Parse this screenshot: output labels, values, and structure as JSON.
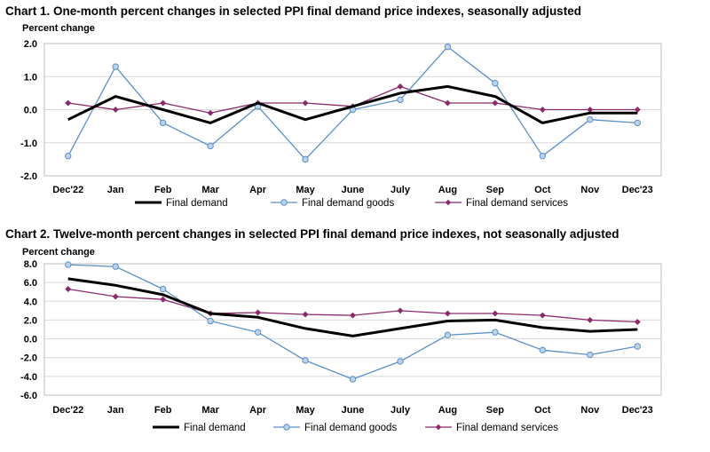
{
  "chart_data": [
    {
      "type": "line",
      "title": "Chart 1. One-month percent changes in selected PPI final demand price indexes, seasonally adjusted",
      "ylabel": "Percent change",
      "xlabel": "",
      "ylim": [
        -2.0,
        2.0
      ],
      "yticks": [
        "2.0",
        "1.0",
        "0.0",
        "-1.0",
        "-2.0"
      ],
      "ytick_values": [
        2,
        1,
        0,
        -1,
        -2
      ],
      "categories": [
        "Dec'22",
        "Jan",
        "Feb",
        "Mar",
        "Apr",
        "May",
        "June",
        "July",
        "Aug",
        "Sep",
        "Oct",
        "Nov",
        "Dec'23"
      ],
      "grid": true,
      "legend": "bottom",
      "series": [
        {
          "name": "Final demand",
          "color": "#000000",
          "marker": "none",
          "values": [
            -0.3,
            0.4,
            0.0,
            -0.4,
            0.2,
            -0.3,
            0.1,
            0.5,
            0.7,
            0.4,
            -0.4,
            -0.1,
            -0.1
          ]
        },
        {
          "name": "Final demand goods",
          "color": "#5B8FC7",
          "marker": "circle",
          "values": [
            -1.4,
            1.3,
            -0.4,
            -1.1,
            0.1,
            -1.5,
            0.0,
            0.3,
            1.9,
            0.8,
            -1.4,
            -0.3,
            -0.4
          ]
        },
        {
          "name": "Final demand services",
          "color": "#8B2A6B",
          "marker": "diamond",
          "values": [
            0.2,
            0.0,
            0.2,
            -0.1,
            0.2,
            0.2,
            0.1,
            0.7,
            0.2,
            0.2,
            0.0,
            0.0,
            0.0
          ]
        }
      ]
    },
    {
      "type": "line",
      "title": "Chart 2. Twelve-month percent changes in selected PPI final demand price indexes, not seasonally adjusted",
      "ylabel": "Percent change",
      "xlabel": "",
      "ylim": [
        -6.0,
        8.0
      ],
      "yticks": [
        "8.0",
        "6.0",
        "4.0",
        "2.0",
        "0.0",
        "-2.0",
        "-4.0",
        "-6.0"
      ],
      "ytick_values": [
        8,
        6,
        4,
        2,
        0,
        -2,
        -4,
        -6
      ],
      "categories": [
        "Dec'22",
        "Jan",
        "Feb",
        "Mar",
        "Apr",
        "May",
        "June",
        "July",
        "Aug",
        "Sep",
        "Oct",
        "Nov",
        "Dec'23"
      ],
      "grid": true,
      "legend": "bottom",
      "series": [
        {
          "name": "Final demand",
          "color": "#000000",
          "marker": "none",
          "values": [
            6.4,
            5.7,
            4.7,
            2.7,
            2.3,
            1.1,
            0.3,
            1.1,
            1.9,
            2.0,
            1.2,
            0.8,
            1.0
          ]
        },
        {
          "name": "Final demand goods",
          "color": "#5B8FC7",
          "marker": "circle",
          "values": [
            7.9,
            7.7,
            5.3,
            1.9,
            0.7,
            -2.3,
            -4.3,
            -2.4,
            0.4,
            0.7,
            -1.2,
            -1.7,
            -0.8
          ]
        },
        {
          "name": "Final demand services",
          "color": "#8B2A6B",
          "marker": "diamond",
          "values": [
            5.3,
            4.5,
            4.2,
            2.7,
            2.8,
            2.6,
            2.5,
            3.0,
            2.7,
            2.7,
            2.5,
            2.0,
            1.8
          ]
        }
      ]
    }
  ]
}
